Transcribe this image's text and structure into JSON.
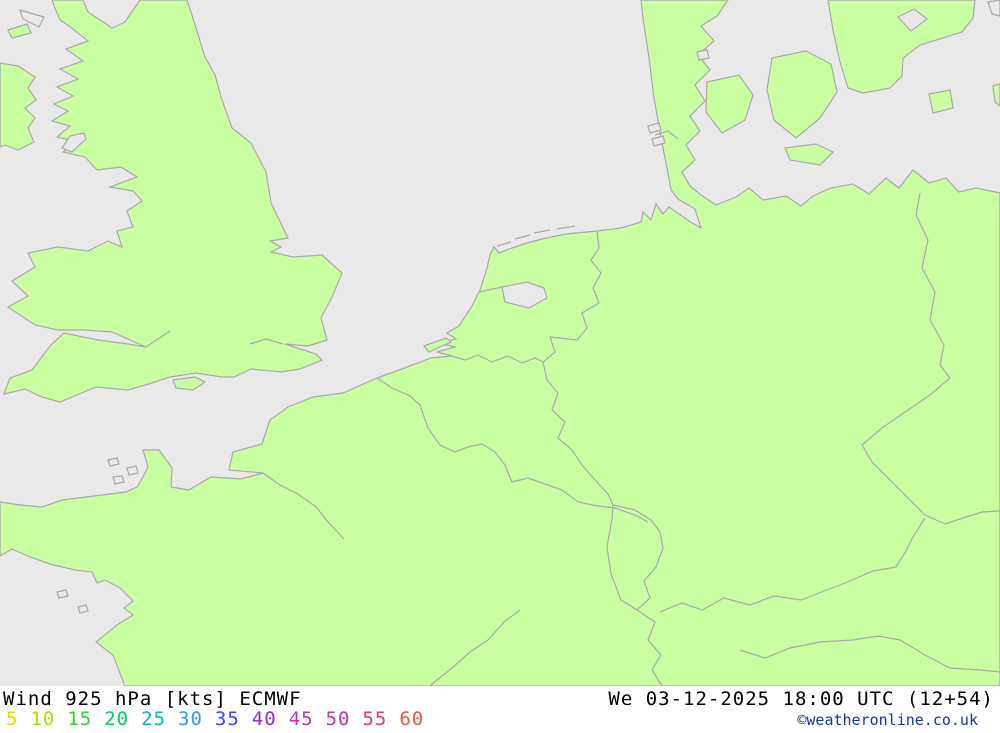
{
  "map": {
    "sea_color": "#e9e9e9",
    "land_color": "#c9ffa1",
    "coast_color": "#a8a8a8"
  },
  "footer": {
    "title": "Wind 925 hPa [kts] ECMWF",
    "datetime": "We 03-12-2025 18:00 UTC (12+54)",
    "copyright": "©weatheronline.co.uk",
    "text_color": "#000000",
    "copyright_color": "#1a3399"
  },
  "legend": {
    "values": [
      {
        "label": "5",
        "color": "#dcdc00"
      },
      {
        "label": "10",
        "color": "#a8e000"
      },
      {
        "label": "15",
        "color": "#33cc33"
      },
      {
        "label": "20",
        "color": "#00cc66"
      },
      {
        "label": "25",
        "color": "#00bbaa"
      },
      {
        "label": "30",
        "color": "#3399ee"
      },
      {
        "label": "35",
        "color": "#4040ff"
      },
      {
        "label": "40",
        "color": "#8833cc"
      },
      {
        "label": "45",
        "color": "#bb33bb"
      },
      {
        "label": "50",
        "color": "#d03090"
      },
      {
        "label": "55",
        "color": "#e83070"
      },
      {
        "label": "60",
        "color": "#ee5544"
      }
    ]
  }
}
